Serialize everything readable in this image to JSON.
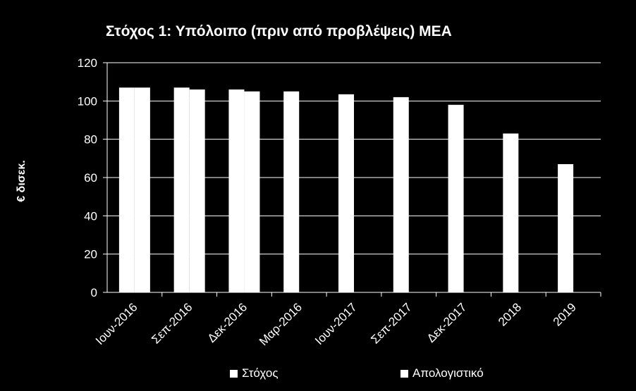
{
  "chart_data": {
    "type": "bar",
    "title": "Στόχος 1: Υπόλοιπο (πριν από προβλέψεις) ΜΕΑ",
    "ylabel": "€ δισεκ.",
    "xlabel": "",
    "ylim": [
      0,
      120
    ],
    "yticks": [
      0,
      20,
      40,
      60,
      80,
      100,
      120
    ],
    "grid": true,
    "legend_position": "bottom",
    "categories": [
      "Ιουν-2016",
      "Σεπ-2016",
      "Δεκ-2016",
      "Μαρ-2016",
      "Ιουν-2017",
      "Σεπ-2017",
      "Δεκ-2017",
      "2018",
      "2019"
    ],
    "series": [
      {
        "name": "Στόχος",
        "values": [
          107,
          107,
          106,
          105,
          103.5,
          102,
          98,
          83,
          67
        ]
      },
      {
        "name": "Απολογιστικό",
        "values": [
          107,
          106,
          105,
          null,
          null,
          null,
          null,
          null,
          null
        ]
      }
    ],
    "colors": {
      "background": "#000000",
      "bars": "#ffffff",
      "grid": "#ffffff",
      "text": "#ffffff"
    }
  }
}
